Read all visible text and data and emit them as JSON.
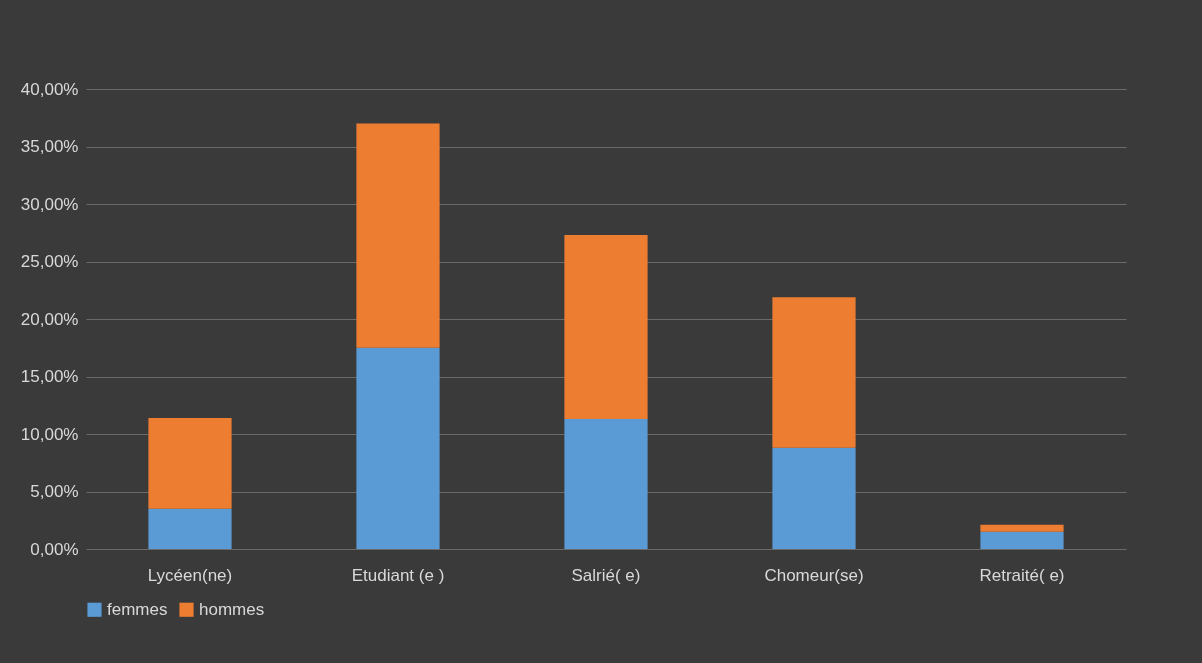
{
  "chart_data": {
    "type": "bar",
    "stacked": true,
    "categories": [
      "Lycéen(ne)",
      "Etudiant (e )",
      "Salrié( e)",
      "Chomeur(se)",
      "Retraité( e)"
    ],
    "series": [
      {
        "name": "femmes",
        "color": "#5b9bd5",
        "values": [
          3.5,
          17.5,
          11.3,
          8.8,
          1.5
        ]
      },
      {
        "name": "hommes",
        "color": "#ed7d31",
        "values": [
          7.9,
          19.5,
          16.0,
          13.1,
          0.6
        ]
      }
    ],
    "ylim": [
      0,
      40
    ],
    "yticks": [
      {
        "value": 0,
        "label": "0,00%"
      },
      {
        "value": 5,
        "label": "5,00%"
      },
      {
        "value": 10,
        "label": "10,00%"
      },
      {
        "value": 15,
        "label": "15,00%"
      },
      {
        "value": 20,
        "label": "20,00%"
      },
      {
        "value": 25,
        "label": "25,00%"
      },
      {
        "value": 30,
        "label": "30,00%"
      },
      {
        "value": 35,
        "label": "35,00%"
      },
      {
        "value": 40,
        "label": "40,00%"
      }
    ],
    "grid": "y",
    "legend": "bottom"
  }
}
